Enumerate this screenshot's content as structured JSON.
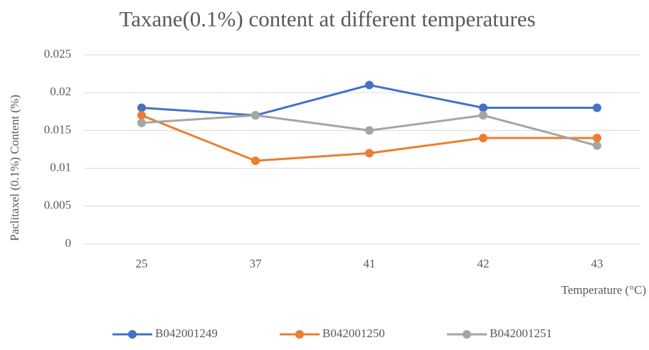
{
  "chart_data": {
    "type": "line",
    "title": "Taxane(0.1%) content at different temperatures",
    "x_label": "Temperature (°C)",
    "y_label": "Paclitaxel (0.1%) Content (%)",
    "categories": [
      "25",
      "37",
      "41",
      "42",
      "43"
    ],
    "series": [
      {
        "name": "B042001249",
        "color": "#4472c4",
        "values": [
          0.018,
          0.017,
          0.021,
          0.018,
          0.018
        ]
      },
      {
        "name": "B042001250",
        "color": "#ed7d31",
        "values": [
          0.017,
          0.011,
          0.012,
          0.014,
          0.014
        ]
      },
      {
        "name": "B042001251",
        "color": "#a5a5a5",
        "values": [
          0.016,
          0.017,
          0.015,
          0.017,
          0.013
        ]
      }
    ],
    "ylim": [
      0,
      0.025
    ],
    "yticks": [
      0,
      0.005,
      0.01,
      0.015,
      0.02,
      0.025
    ],
    "grid": true,
    "legend": "bottom"
  }
}
